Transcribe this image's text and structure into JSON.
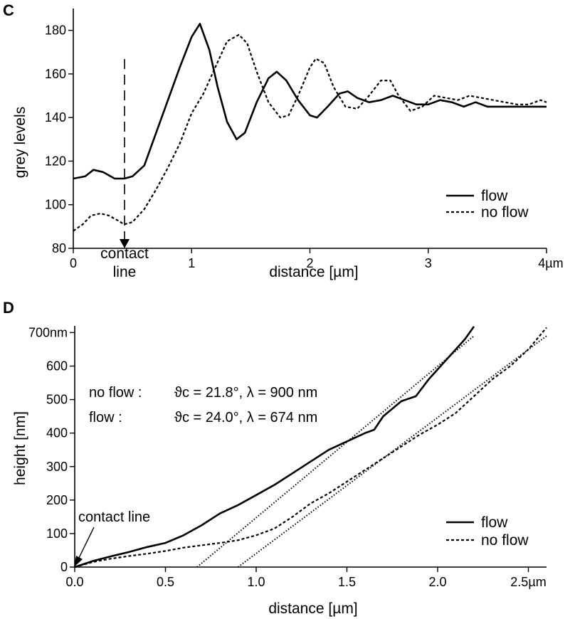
{
  "chart_data": [
    {
      "panel_label": "C",
      "type": "line",
      "ylabel": "grey levels",
      "xlabel": "distance [µm]",
      "xlim": [
        0,
        4
      ],
      "ylim": [
        80,
        190
      ],
      "x_tick_labels": [
        "0",
        "1",
        "2",
        "3",
        "4µm"
      ],
      "x_ticks": [
        0,
        1,
        2,
        3,
        4
      ],
      "y_ticks": [
        80,
        100,
        120,
        140,
        160,
        180
      ],
      "y_tick_labels": [
        "80",
        "100",
        "120",
        "140",
        "160",
        "180"
      ],
      "contact_line_label_1": "contact",
      "contact_line_label_2": "line",
      "contact_line_x": 0.43,
      "legend_position": "lower-right",
      "series": [
        {
          "name": "flow",
          "style": "solid",
          "x": [
            0,
            0.1,
            0.17,
            0.25,
            0.35,
            0.43,
            0.5,
            0.6,
            0.7,
            0.8,
            0.9,
            1.0,
            1.07,
            1.15,
            1.22,
            1.3,
            1.38,
            1.45,
            1.55,
            1.65,
            1.72,
            1.8,
            1.9,
            2.0,
            2.06,
            2.15,
            2.25,
            2.32,
            2.4,
            2.5,
            2.6,
            2.7,
            2.8,
            2.9,
            3.0,
            3.1,
            3.2,
            3.3,
            3.4,
            3.5,
            3.6,
            3.7,
            3.8,
            3.9,
            4.0
          ],
          "y": [
            112,
            113,
            116,
            115,
            112,
            112,
            113,
            118,
            133,
            148,
            163,
            177,
            183,
            171,
            154,
            138,
            130,
            133,
            147,
            158,
            161,
            157,
            148,
            141,
            140,
            145,
            151,
            152,
            149,
            147,
            148,
            150,
            148,
            146,
            146,
            148,
            147,
            145,
            147,
            145,
            145,
            145,
            145,
            145,
            145
          ]
        },
        {
          "name": "no flow",
          "style": "dashed",
          "x": [
            0,
            0.08,
            0.15,
            0.23,
            0.3,
            0.37,
            0.43,
            0.5,
            0.6,
            0.7,
            0.8,
            0.9,
            1.0,
            1.1,
            1.2,
            1.3,
            1.4,
            1.47,
            1.55,
            1.65,
            1.75,
            1.82,
            1.9,
            2.0,
            2.05,
            2.12,
            2.2,
            2.3,
            2.4,
            2.5,
            2.6,
            2.68,
            2.75,
            2.85,
            2.95,
            3.05,
            3.15,
            3.25,
            3.35,
            3.45,
            3.55,
            3.65,
            3.75,
            3.85,
            3.95,
            4.0
          ],
          "y": [
            88,
            91,
            95,
            96,
            95,
            93,
            91,
            92,
            98,
            107,
            117,
            128,
            142,
            151,
            163,
            175,
            178,
            174,
            161,
            147,
            140,
            141,
            150,
            163,
            167,
            165,
            154,
            145,
            144,
            150,
            157,
            157,
            150,
            143,
            145,
            150,
            149,
            148,
            150,
            149,
            148,
            147,
            146,
            146,
            148,
            147
          ]
        }
      ]
    },
    {
      "panel_label": "D",
      "type": "line",
      "ylabel": "height [nm]",
      "xlabel": "distance [µm]",
      "xlim": [
        0,
        2.6
      ],
      "ylim": [
        0,
        720
      ],
      "x_ticks": [
        0,
        0.5,
        1.0,
        1.5,
        2.0,
        2.5
      ],
      "x_tick_labels": [
        "0.0",
        "0.5",
        "1.0",
        "1.5",
        "2.0",
        "2.5µm"
      ],
      "y_ticks": [
        0,
        100,
        200,
        300,
        400,
        500,
        600,
        700
      ],
      "y_tick_labels": [
        "0",
        "100",
        "200",
        "300",
        "400",
        "500",
        "600",
        "700nm"
      ],
      "legend_position": "lower-right",
      "annotation_contact_line": "contact line",
      "annotation_line_1_label": "no flow :",
      "annotation_line_1_values": "ϑc = 21.8°,   λ = 900 nm",
      "annotation_line_2_label": "flow :",
      "annotation_line_2_values": "ϑc = 24.0°,   λ = 674 nm",
      "series": [
        {
          "name": "flow",
          "style": "solid",
          "x": [
            0,
            0.1,
            0.2,
            0.3,
            0.4,
            0.5,
            0.6,
            0.7,
            0.8,
            0.9,
            1.0,
            1.1,
            1.2,
            1.3,
            1.4,
            1.5,
            1.6,
            1.65,
            1.7,
            1.8,
            1.88,
            1.95,
            2.05,
            2.15,
            2.2
          ],
          "y": [
            0,
            18,
            32,
            45,
            60,
            72,
            95,
            125,
            160,
            185,
            215,
            245,
            280,
            315,
            350,
            375,
            400,
            410,
            450,
            495,
            510,
            560,
            620,
            680,
            718
          ]
        },
        {
          "name": "no flow",
          "style": "dashed",
          "x": [
            0,
            0.1,
            0.2,
            0.3,
            0.4,
            0.5,
            0.6,
            0.7,
            0.8,
            0.9,
            1.0,
            1.1,
            1.2,
            1.3,
            1.4,
            1.5,
            1.6,
            1.7,
            1.8,
            1.9,
            2.0,
            2.1,
            2.2,
            2.3,
            2.4,
            2.5,
            2.6
          ],
          "y": [
            0,
            15,
            25,
            33,
            40,
            48,
            58,
            65,
            72,
            80,
            95,
            115,
            150,
            190,
            220,
            255,
            290,
            325,
            360,
            395,
            425,
            460,
            510,
            560,
            600,
            650,
            715
          ]
        },
        {
          "name": "",
          "style": "dotted",
          "x": [
            0.674,
            2.2
          ],
          "y": [
            0,
            690
          ]
        },
        {
          "name": "",
          "style": "dotted",
          "x": [
            0.9,
            2.6
          ],
          "y": [
            0,
            690
          ]
        }
      ]
    }
  ]
}
